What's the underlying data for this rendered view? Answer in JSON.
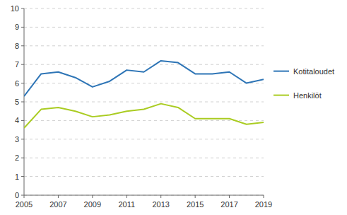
{
  "chart_data": {
    "type": "line",
    "x": [
      2005,
      2006,
      2007,
      2008,
      2009,
      2010,
      2011,
      2012,
      2013,
      2014,
      2015,
      2016,
      2017,
      2018,
      2019
    ],
    "series": [
      {
        "name": "Kotitaloudet",
        "color": "#2E75B6",
        "values": [
          5.3,
          6.5,
          6.6,
          6.3,
          5.8,
          6.1,
          6.7,
          6.6,
          7.2,
          7.1,
          6.5,
          6.5,
          6.6,
          6.0,
          6.2
        ]
      },
      {
        "name": "Henkilöt",
        "color": "#AACC22",
        "values": [
          3.6,
          4.6,
          4.7,
          4.5,
          4.2,
          4.3,
          4.5,
          4.6,
          4.9,
          4.7,
          4.1,
          4.1,
          4.1,
          3.8,
          3.9
        ]
      }
    ],
    "xlim": [
      2005,
      2019
    ],
    "xticks": [
      2005,
      2007,
      2009,
      2011,
      2013,
      2015,
      2017,
      2019
    ],
    "ylim": [
      0,
      10
    ],
    "yticks": [
      0,
      1,
      2,
      3,
      4,
      5,
      6,
      7,
      8,
      9,
      10
    ],
    "grid": true,
    "legend": "right"
  }
}
